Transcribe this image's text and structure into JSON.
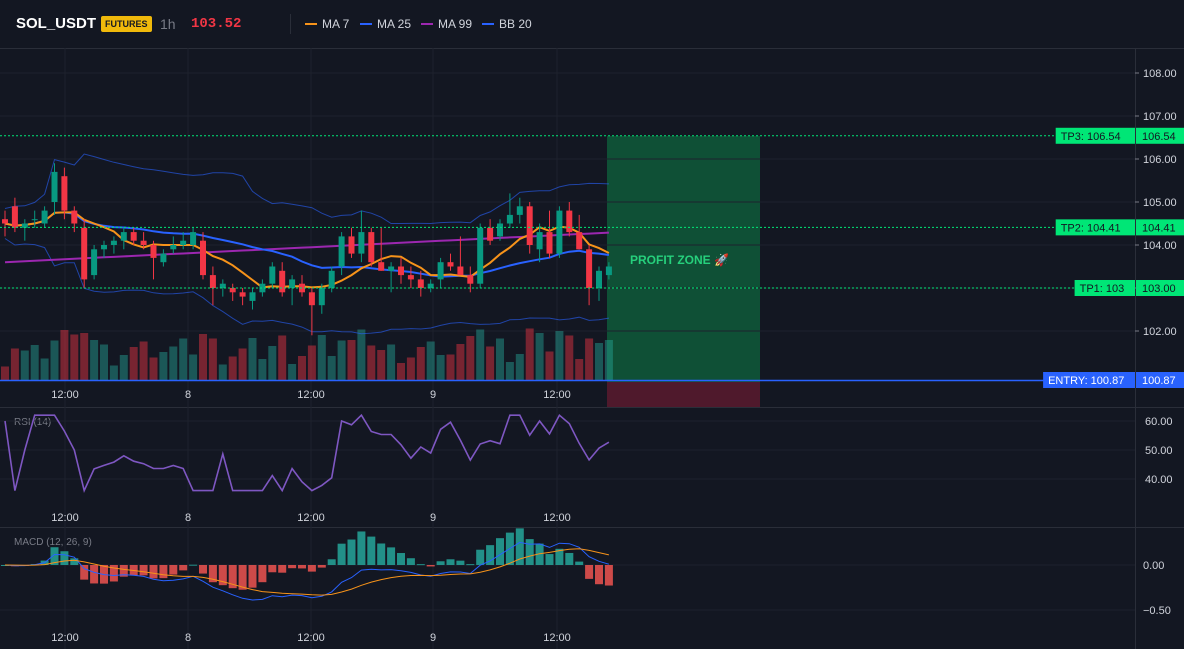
{
  "header": {
    "symbol": "SOL_USDT",
    "badge": "FUTURES",
    "timeframe": "1h",
    "price": "103.52",
    "legend": [
      {
        "label": "MA 7",
        "color": "#f7931a"
      },
      {
        "label": "MA 25",
        "color": "#2962ff"
      },
      {
        "label": "MA 99",
        "color": "#9c27b0"
      },
      {
        "label": "BB 20",
        "color": "#2962ff"
      }
    ]
  },
  "colors": {
    "up": "#26a69a",
    "up_bright": "#089981",
    "down": "#f23645",
    "tp": "#00e676",
    "entry": "#2962ff",
    "profit_zone": "#0f5a3a",
    "loss_zone": "#5a1a2e"
  },
  "price_axis": {
    "ticks": [
      "108.00",
      "107.00",
      "106.00",
      "105.00",
      "104.00",
      "103.00",
      "102.00"
    ]
  },
  "time_axis": {
    "ticks": [
      "12:00",
      "8",
      "12:00",
      "9",
      "12:00"
    ]
  },
  "levels": {
    "tp3": {
      "label": "TP3: 106.54",
      "value": "106.54",
      "price": 106.54
    },
    "tp2": {
      "label": "TP2: 104.41",
      "value": "104.41",
      "price": 104.41
    },
    "tp1": {
      "label": "TP1: 103",
      "value": "103.00",
      "price": 103.0
    },
    "entry": {
      "label": "ENTRY: 100.87",
      "value": "100.87",
      "price": 100.87
    }
  },
  "profit_zone_label": "PROFIT ZONE 🚀",
  "rsi": {
    "title": "RSI (14)",
    "ticks": [
      "60.00",
      "50.00",
      "40.00"
    ]
  },
  "macd": {
    "title": "MACD (12, 26, 9)",
    "ticks": [
      "0.00",
      "−0.50"
    ]
  },
  "chart_data": {
    "type": "candlestick",
    "series": [
      {
        "name": "SOL_USDT",
        "candles": [
          {
            "o": 104.6,
            "h": 104.8,
            "l": 104.2,
            "c": 104.5
          },
          {
            "o": 104.9,
            "h": 105.1,
            "l": 104.3,
            "c": 104.4
          },
          {
            "o": 104.4,
            "h": 104.6,
            "l": 104.1,
            "c": 104.5
          },
          {
            "o": 104.6,
            "h": 104.8,
            "l": 104.4,
            "c": 104.6
          },
          {
            "o": 104.5,
            "h": 104.9,
            "l": 104.4,
            "c": 104.8
          },
          {
            "o": 105.0,
            "h": 105.9,
            "l": 104.7,
            "c": 105.7
          },
          {
            "o": 105.6,
            "h": 105.8,
            "l": 104.6,
            "c": 104.8
          },
          {
            "o": 104.8,
            "h": 104.9,
            "l": 104.3,
            "c": 104.5
          },
          {
            "o": 104.4,
            "h": 104.6,
            "l": 103.0,
            "c": 103.2
          },
          {
            "o": 103.3,
            "h": 104.0,
            "l": 103.2,
            "c": 103.9
          },
          {
            "o": 103.9,
            "h": 104.1,
            "l": 103.7,
            "c": 104.0
          },
          {
            "o": 104.0,
            "h": 104.2,
            "l": 103.8,
            "c": 104.1
          },
          {
            "o": 104.1,
            "h": 104.4,
            "l": 103.9,
            "c": 104.3
          },
          {
            "o": 104.3,
            "h": 104.4,
            "l": 104.0,
            "c": 104.1
          },
          {
            "o": 104.1,
            "h": 104.3,
            "l": 103.9,
            "c": 104.0
          },
          {
            "o": 104.0,
            "h": 104.1,
            "l": 103.2,
            "c": 103.7
          },
          {
            "o": 103.6,
            "h": 103.9,
            "l": 103.5,
            "c": 103.8
          },
          {
            "o": 103.9,
            "h": 104.2,
            "l": 103.8,
            "c": 104.0
          },
          {
            "o": 104.0,
            "h": 104.3,
            "l": 103.9,
            "c": 104.1
          },
          {
            "o": 104.0,
            "h": 104.4,
            "l": 103.9,
            "c": 104.3
          },
          {
            "o": 104.1,
            "h": 104.3,
            "l": 103.2,
            "c": 103.3
          },
          {
            "o": 103.3,
            "h": 103.5,
            "l": 102.6,
            "c": 103.0
          },
          {
            "o": 103.0,
            "h": 103.2,
            "l": 102.8,
            "c": 103.1
          },
          {
            "o": 103.0,
            "h": 103.1,
            "l": 102.7,
            "c": 102.9
          },
          {
            "o": 102.9,
            "h": 103.0,
            "l": 102.6,
            "c": 102.8
          },
          {
            "o": 102.7,
            "h": 103.0,
            "l": 102.5,
            "c": 102.9
          },
          {
            "o": 102.9,
            "h": 103.2,
            "l": 102.8,
            "c": 103.1
          },
          {
            "o": 103.1,
            "h": 103.6,
            "l": 103.0,
            "c": 103.5
          },
          {
            "o": 103.4,
            "h": 103.6,
            "l": 102.8,
            "c": 102.9
          },
          {
            "o": 103.0,
            "h": 103.3,
            "l": 102.6,
            "c": 103.2
          },
          {
            "o": 103.1,
            "h": 103.3,
            "l": 102.8,
            "c": 102.9
          },
          {
            "o": 102.9,
            "h": 103.0,
            "l": 101.9,
            "c": 102.6
          },
          {
            "o": 102.6,
            "h": 103.1,
            "l": 102.4,
            "c": 103.0
          },
          {
            "o": 103.0,
            "h": 103.5,
            "l": 102.9,
            "c": 103.4
          },
          {
            "o": 103.5,
            "h": 104.3,
            "l": 103.3,
            "c": 104.2
          },
          {
            "o": 104.2,
            "h": 104.4,
            "l": 103.7,
            "c": 103.8
          },
          {
            "o": 103.8,
            "h": 104.8,
            "l": 103.6,
            "c": 104.3
          },
          {
            "o": 104.3,
            "h": 104.4,
            "l": 103.5,
            "c": 103.6
          },
          {
            "o": 103.6,
            "h": 104.4,
            "l": 103.4,
            "c": 103.4
          },
          {
            "o": 103.4,
            "h": 103.6,
            "l": 102.9,
            "c": 103.5
          },
          {
            "o": 103.5,
            "h": 103.7,
            "l": 103.1,
            "c": 103.3
          },
          {
            "o": 103.3,
            "h": 103.5,
            "l": 103.0,
            "c": 103.2
          },
          {
            "o": 103.2,
            "h": 103.4,
            "l": 102.8,
            "c": 103.0
          },
          {
            "o": 103.0,
            "h": 103.2,
            "l": 102.9,
            "c": 103.1
          },
          {
            "o": 103.2,
            "h": 103.7,
            "l": 103.0,
            "c": 103.6
          },
          {
            "o": 103.6,
            "h": 103.8,
            "l": 103.4,
            "c": 103.5
          },
          {
            "o": 103.5,
            "h": 104.2,
            "l": 103.3,
            "c": 103.3
          },
          {
            "o": 103.3,
            "h": 103.5,
            "l": 102.9,
            "c": 103.1
          },
          {
            "o": 103.1,
            "h": 104.5,
            "l": 103.0,
            "c": 104.4
          },
          {
            "o": 104.4,
            "h": 104.6,
            "l": 104.0,
            "c": 104.1
          },
          {
            "o": 104.2,
            "h": 104.6,
            "l": 104.1,
            "c": 104.5
          },
          {
            "o": 104.5,
            "h": 105.2,
            "l": 104.4,
            "c": 104.7
          },
          {
            "o": 104.7,
            "h": 105.1,
            "l": 104.5,
            "c": 104.9
          },
          {
            "o": 104.9,
            "h": 105.0,
            "l": 103.8,
            "c": 104.0
          },
          {
            "o": 103.9,
            "h": 104.5,
            "l": 103.6,
            "c": 104.3
          },
          {
            "o": 104.3,
            "h": 104.8,
            "l": 103.7,
            "c": 103.8
          },
          {
            "o": 103.8,
            "h": 104.9,
            "l": 103.7,
            "c": 104.8
          },
          {
            "o": 104.8,
            "h": 105.0,
            "l": 104.2,
            "c": 104.3
          },
          {
            "o": 104.3,
            "h": 104.7,
            "l": 103.9,
            "c": 103.9
          },
          {
            "o": 103.9,
            "h": 104.0,
            "l": 102.6,
            "c": 103.0
          },
          {
            "o": 103.0,
            "h": 103.5,
            "l": 102.7,
            "c": 103.4
          },
          {
            "o": 103.3,
            "h": 103.6,
            "l": 103.2,
            "c": 103.5
          }
        ]
      }
    ],
    "x_tick_labels": [
      "12:00",
      "8",
      "12:00",
      "9",
      "12:00"
    ],
    "y_range": [
      100.6,
      108.5
    ]
  }
}
